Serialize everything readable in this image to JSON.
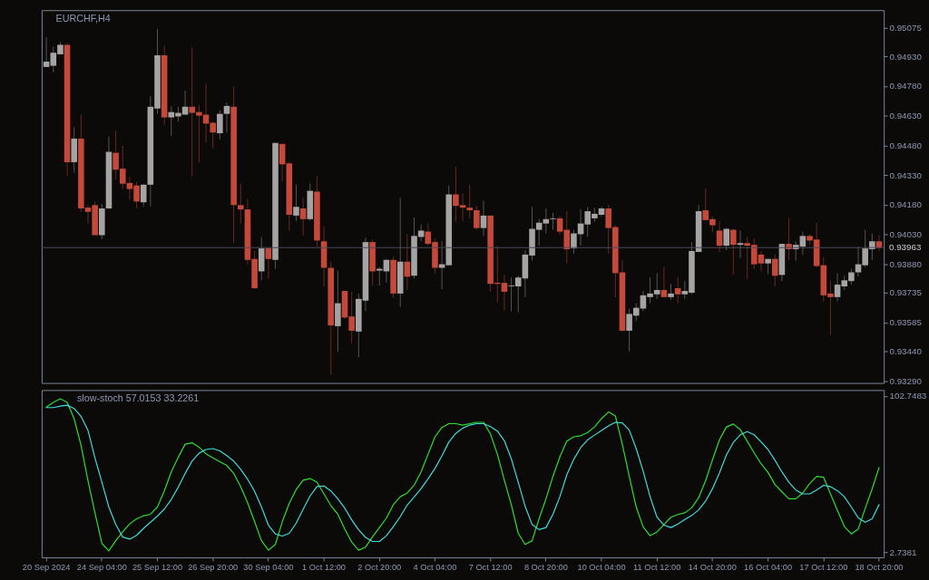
{
  "chart_data": [
    {
      "type": "candlestick",
      "title": "EURCHF,H4",
      "ohlc": [
        [
          0.94876,
          0.95027,
          0.94876,
          0.94903
        ],
        [
          0.94882,
          0.94979,
          0.94847,
          0.94948
        ],
        [
          0.9494,
          0.95002,
          0.9494,
          0.94988
        ],
        [
          0.94988,
          0.94997,
          0.94326,
          0.94395
        ],
        [
          0.94395,
          0.94572,
          0.94341,
          0.94514
        ],
        [
          0.94514,
          0.94635,
          0.94144,
          0.94161
        ],
        [
          0.94165,
          0.9418,
          0.94086,
          0.94144
        ],
        [
          0.94178,
          0.94196,
          0.94026,
          0.94026
        ],
        [
          0.94026,
          0.94184,
          0.94005,
          0.94161
        ],
        [
          0.94161,
          0.94524,
          0.94158,
          0.94447
        ],
        [
          0.94442,
          0.94554,
          0.94308,
          0.94357
        ],
        [
          0.94362,
          0.94478,
          0.94259,
          0.94286
        ],
        [
          0.9429,
          0.94319,
          0.94205,
          0.94259
        ],
        [
          0.94277,
          0.94296,
          0.94161,
          0.94196
        ],
        [
          0.94192,
          0.94286,
          0.94171,
          0.94281
        ],
        [
          0.94281,
          0.94729,
          0.94171,
          0.94675
        ],
        [
          0.94666,
          0.95069,
          0.94639,
          0.94935
        ],
        [
          0.94935,
          0.94985,
          0.94583,
          0.94621
        ],
        [
          0.94621,
          0.94677,
          0.94527,
          0.94648
        ],
        [
          0.94626,
          0.94675,
          0.94599,
          0.94644
        ],
        [
          0.94635,
          0.94756,
          0.94635,
          0.94675
        ],
        [
          0.94675,
          0.94975,
          0.94322,
          0.94644
        ],
        [
          0.94648,
          0.94684,
          0.94393,
          0.9463
        ],
        [
          0.94635,
          0.94791,
          0.94496,
          0.9459
        ],
        [
          0.94594,
          0.94599,
          0.94465,
          0.94545
        ],
        [
          0.94541,
          0.94657,
          0.94511,
          0.94639
        ],
        [
          0.94639,
          0.94697,
          0.94545,
          0.94679
        ],
        [
          0.94675,
          0.94778,
          0.93986,
          0.94178
        ],
        [
          0.94178,
          0.94286,
          0.94086,
          0.94156
        ],
        [
          0.94156,
          0.9421,
          0.93879,
          0.93901
        ],
        [
          0.93906,
          0.93946,
          0.93753,
          0.93758
        ],
        [
          0.93843,
          0.94017,
          0.93798,
          0.93959
        ],
        [
          0.93959,
          0.93959,
          0.93807,
          0.93906
        ],
        [
          0.93901,
          0.94492,
          0.93856,
          0.94492
        ],
        [
          0.94487,
          0.94487,
          0.94299,
          0.94384
        ],
        [
          0.94389,
          0.94398,
          0.94049,
          0.94129
        ],
        [
          0.94125,
          0.94281,
          0.94098,
          0.94169
        ],
        [
          0.94161,
          0.94214,
          0.94022,
          0.94107
        ],
        [
          0.94107,
          0.94286,
          0.94098,
          0.9425
        ],
        [
          0.94246,
          0.94326,
          0.93968,
          0.93999
        ],
        [
          0.93995,
          0.94071,
          0.93767,
          0.93861
        ],
        [
          0.93861,
          0.93892,
          0.93319,
          0.9357
        ],
        [
          0.93566,
          0.93847,
          0.93436,
          0.93682
        ],
        [
          0.93744,
          0.93744,
          0.93601,
          0.9361
        ],
        [
          0.93615,
          0.9374,
          0.9348,
          0.93543
        ],
        [
          0.93539,
          0.93731,
          0.93409,
          0.93704
        ],
        [
          0.93695,
          0.94013,
          0.93642,
          0.93991
        ],
        [
          0.93991,
          0.94004,
          0.93771,
          0.93843
        ],
        [
          0.93847,
          0.93865,
          0.93771,
          0.93856
        ],
        [
          0.93843,
          0.93906,
          0.93785,
          0.93901
        ],
        [
          0.93901,
          0.93919,
          0.93709,
          0.93731
        ],
        [
          0.93731,
          0.94214,
          0.93664,
          0.93892
        ],
        [
          0.93892,
          0.94031,
          0.93749,
          0.93816
        ],
        [
          0.93821,
          0.94116,
          0.93807,
          0.94022
        ],
        [
          0.94017,
          0.9408,
          0.93995,
          0.94049
        ],
        [
          0.94044,
          0.94084,
          0.93973,
          0.93982
        ],
        [
          0.93991,
          0.94008,
          0.93834,
          0.93861
        ],
        [
          0.93861,
          0.93995,
          0.93753,
          0.93879
        ],
        [
          0.93874,
          0.94277,
          0.93874,
          0.94232
        ],
        [
          0.94232,
          0.94371,
          0.94093,
          0.94174
        ],
        [
          0.94178,
          0.94237,
          0.94098,
          0.94165
        ],
        [
          0.94165,
          0.94281,
          0.94111,
          0.94152
        ],
        [
          0.94152,
          0.94174,
          0.94053,
          0.94062
        ],
        [
          0.94062,
          0.94201,
          0.94022,
          0.94125
        ],
        [
          0.94125,
          0.94125,
          0.9374,
          0.9378
        ],
        [
          0.93785,
          0.93973,
          0.93686,
          0.9378
        ],
        [
          0.93785,
          0.93825,
          0.93646,
          0.9374
        ],
        [
          0.93767,
          0.93812,
          0.93642,
          0.93771
        ],
        [
          0.93767,
          0.93821,
          0.93637,
          0.93812
        ],
        [
          0.93807,
          0.9395,
          0.93713,
          0.93928
        ],
        [
          0.93923,
          0.94169,
          0.93897,
          0.94058
        ],
        [
          0.94053,
          0.94107,
          0.93973,
          0.94089
        ],
        [
          0.94085,
          0.94161,
          0.94035,
          0.94107
        ],
        [
          0.94107,
          0.94138,
          0.94053,
          0.94111
        ],
        [
          0.94111,
          0.94125,
          0.94026,
          0.94044
        ],
        [
          0.94053,
          0.94147,
          0.93883,
          0.93955
        ],
        [
          0.93959,
          0.94053,
          0.93932,
          0.94035
        ],
        [
          0.94031,
          0.94156,
          0.93973,
          0.94085
        ],
        [
          0.9408,
          0.94169,
          0.94017,
          0.94147
        ],
        [
          0.94111,
          0.94165,
          0.94093,
          0.94134
        ],
        [
          0.94129,
          0.94169,
          0.9412,
          0.94161
        ],
        [
          0.94161,
          0.94178,
          0.93932,
          0.94062
        ],
        [
          0.94067,
          0.94076,
          0.93713,
          0.93834
        ],
        [
          0.93838,
          0.93901,
          0.93539,
          0.93543
        ],
        [
          0.93543,
          0.93655,
          0.93436,
          0.93628
        ],
        [
          0.93619,
          0.93682,
          0.93592,
          0.93659
        ],
        [
          0.93655,
          0.93744,
          0.93642,
          0.93722
        ],
        [
          0.93713,
          0.93812,
          0.93682,
          0.93731
        ],
        [
          0.93727,
          0.93834,
          0.93704,
          0.93749
        ],
        [
          0.93749,
          0.93865,
          0.93713,
          0.93713
        ],
        [
          0.93713,
          0.9378,
          0.937,
          0.93731
        ],
        [
          0.93758,
          0.93816,
          0.93682,
          0.93727
        ],
        [
          0.93727,
          0.93794,
          0.93704,
          0.93744
        ],
        [
          0.93735,
          0.93991,
          0.93727,
          0.93946
        ],
        [
          0.93941,
          0.94178,
          0.93941,
          0.94147
        ],
        [
          0.94152,
          0.94263,
          0.94102,
          0.94102
        ],
        [
          0.94107,
          0.9412,
          0.9404,
          0.94076
        ],
        [
          0.94049,
          0.94098,
          0.93941,
          0.93973
        ],
        [
          0.93973,
          0.94062,
          0.9395,
          0.94058
        ],
        [
          0.94053,
          0.94058,
          0.93829,
          0.93977
        ],
        [
          0.93977,
          0.94049,
          0.9391,
          0.93986
        ],
        [
          0.93986,
          0.94017,
          0.93803,
          0.93973
        ],
        [
          0.93977,
          0.94008,
          0.93856,
          0.93879
        ],
        [
          0.93928,
          0.93946,
          0.93843,
          0.93883
        ],
        [
          0.93883,
          0.93906,
          0.93829,
          0.93906
        ],
        [
          0.93906,
          0.93928,
          0.93767,
          0.93821
        ],
        [
          0.93825,
          0.93982,
          0.93794,
          0.93982
        ],
        [
          0.93982,
          0.94111,
          0.93901,
          0.93955
        ],
        [
          0.93955,
          0.93995,
          0.93897,
          0.93977
        ],
        [
          0.93968,
          0.94044,
          0.93928,
          0.94022
        ],
        [
          0.94022,
          0.94031,
          0.93977,
          0.93999
        ],
        [
          0.94004,
          0.94089,
          0.93865,
          0.9387
        ],
        [
          0.93874,
          0.93914,
          0.93691,
          0.93722
        ],
        [
          0.93731,
          0.93798,
          0.93521,
          0.93713
        ],
        [
          0.93713,
          0.93834,
          0.93691,
          0.93776
        ],
        [
          0.93767,
          0.93821,
          0.93749,
          0.93798
        ],
        [
          0.93794,
          0.93856,
          0.93776,
          0.93838
        ],
        [
          0.93838,
          0.93968,
          0.93816,
          0.93879
        ],
        [
          0.93874,
          0.94053,
          0.93865,
          0.93959
        ],
        [
          0.93955,
          0.94035,
          0.93901,
          0.93995
        ],
        [
          0.93995,
          0.94026,
          0.93946,
          0.93963
        ]
      ],
      "colors": [
        "#a4a4a4",
        "#a4a4a4",
        "#a4a4a4",
        "#c4493b",
        "#a4a4a4",
        "#c4493b",
        "#c4493b",
        "#c4493b",
        "#a4a4a4",
        "#a4a4a4",
        "#c4493b",
        "#c4493b",
        "#c4493b",
        "#c4493b",
        "#a4a4a4",
        "#a4a4a4",
        "#a4a4a4",
        "#c4493b",
        "#a4a4a4",
        "#a4a4a4",
        "#a4a4a4",
        "#c4493b",
        "#c4493b",
        "#c4493b",
        "#c4493b",
        "#a4a4a4",
        "#a4a4a4",
        "#c4493b",
        "#c4493b",
        "#c4493b",
        "#c4493b",
        "#a4a4a4",
        "#c4493b",
        "#a4a4a4",
        "#c4493b",
        "#c4493b",
        "#a4a4a4",
        "#c4493b",
        "#a4a4a4",
        "#c4493b",
        "#c4493b",
        "#c4493b",
        "#a4a4a4",
        "#c4493b",
        "#c4493b",
        "#a4a4a4",
        "#a4a4a4",
        "#c4493b",
        "#a4a4a4",
        "#a4a4a4",
        "#c4493b",
        "#a4a4a4",
        "#c4493b",
        "#a4a4a4",
        "#a4a4a4",
        "#c4493b",
        "#c4493b",
        "#a4a4a4",
        "#a4a4a4",
        "#c4493b",
        "#c4493b",
        "#c4493b",
        "#c4493b",
        "#a4a4a4",
        "#c4493b",
        "#c4493b",
        "#c4493b",
        "#a4a4a4",
        "#a4a4a4",
        "#a4a4a4",
        "#a4a4a4",
        "#a4a4a4",
        "#a4a4a4",
        "#a4a4a4",
        "#c4493b",
        "#c4493b",
        "#a4a4a4",
        "#a4a4a4",
        "#a4a4a4",
        "#a4a4a4",
        "#a4a4a4",
        "#c4493b",
        "#c4493b",
        "#c4493b",
        "#a4a4a4",
        "#a4a4a4",
        "#a4a4a4",
        "#a4a4a4",
        "#a4a4a4",
        "#c4493b",
        "#a4a4a4",
        "#c4493b",
        "#a4a4a4",
        "#a4a4a4",
        "#a4a4a4",
        "#c4493b",
        "#c4493b",
        "#c4493b",
        "#a4a4a4",
        "#c4493b",
        "#a4a4a4",
        "#c4493b",
        "#c4493b",
        "#c4493b",
        "#a4a4a4",
        "#c4493b",
        "#a4a4a4",
        "#c4493b",
        "#a4a4a4",
        "#a4a4a4",
        "#c4493b",
        "#c4493b",
        "#c4493b",
        "#c4493b",
        "#a4a4a4",
        "#a4a4a4",
        "#a4a4a4",
        "#a4a4a4",
        "#a4a4a4",
        "#a4a4a4",
        "#c4493b"
      ],
      "ylim": [
        0.93279,
        0.95163
      ],
      "yticks": [
        0.95075,
        {
          "value": 0.9493,
          "label": "0.94930"
        },
        {
          "value": 0.9478,
          "label": "0.94780"
        },
        {
          "value": 0.9463,
          "label": "0.94630"
        },
        {
          "value": 0.9448,
          "label": "0.94480"
        },
        {
          "value": 0.9433,
          "label": "0.94330"
        },
        {
          "value": 0.9418,
          "label": "0.94180"
        },
        {
          "value": 0.9403,
          "label": "0.94030"
        },
        {
          "value": 0.9388,
          "label": "0.93880"
        },
        0.93735,
        0.93585,
        {
          "value": 0.9344,
          "label": "0.93440"
        },
        {
          "value": 0.9329,
          "label": "0.93290"
        }
      ],
      "ref_lines": [
        {
          "axis": "y",
          "value": 0.93963,
          "label": "0.93963",
          "color": "#4a4a5c"
        }
      ]
    },
    {
      "type": "line",
      "title": "slow-stoch 57.0153 33.2261",
      "categories": [
        "20 Sep 2024",
        null,
        null,
        null,
        null,
        null,
        null,
        null,
        "24 Sep 04:00",
        null,
        null,
        null,
        null,
        null,
        null,
        null,
        "25 Sep 12:00",
        null,
        null,
        null,
        null,
        null,
        null,
        null,
        "26 Sep 20:00",
        null,
        null,
        null,
        null,
        null,
        null,
        null,
        "30 Sep 04:00",
        null,
        null,
        null,
        null,
        null,
        null,
        null,
        "1 Oct 12:00",
        null,
        null,
        null,
        null,
        null,
        null,
        null,
        "2 Oct 20:00",
        null,
        null,
        null,
        null,
        null,
        null,
        null,
        "4 Oct 04:00",
        null,
        null,
        null,
        null,
        null,
        null,
        null,
        "7 Oct 12:00",
        null,
        null,
        null,
        null,
        null,
        null,
        null,
        "8 Oct 20:00",
        null,
        null,
        null,
        null,
        null,
        null,
        null,
        "10 Oct 04:00",
        null,
        null,
        null,
        null,
        null,
        null,
        null,
        "11 Oct 12:00",
        null,
        null,
        null,
        null,
        null,
        null,
        null,
        "14 Oct 20:00",
        null,
        null,
        null,
        null,
        null,
        null,
        null,
        "16 Oct 04:00",
        null,
        null,
        null,
        null,
        null,
        null,
        null,
        "17 Oct 12:00",
        null,
        null,
        null,
        null,
        null,
        null,
        null,
        "18 Oct 20:00"
      ],
      "series": [
        {
          "color": "#2fe02f",
          "values": [
            95.6,
            98.6,
            100.9,
            98.6,
            88.2,
            71.0,
            48.5,
            28.0,
            8.4,
            3.7,
            10.2,
            15.8,
            20.9,
            24.2,
            26.1,
            27.1,
            31.7,
            42.0,
            54.2,
            63.5,
            71.9,
            72.8,
            70.0,
            65.7,
            63.1,
            60.7,
            58.3,
            53.2,
            44.8,
            34.5,
            22.4,
            10.2,
            4.1,
            7.8,
            22.4,
            34.0,
            42.9,
            48.9,
            49.9,
            47.6,
            40.1,
            32.7,
            27.1,
            17.7,
            9.3,
            4.1,
            6.1,
            12.7,
            18.6,
            24.6,
            33.2,
            38.3,
            40.7,
            45.7,
            54.2,
            65.4,
            76.6,
            82.6,
            85.0,
            85.0,
            84.1,
            85.0,
            85.9,
            85.9,
            78.4,
            65.4,
            48.9,
            33.2,
            14.9,
            7.8,
            10.2,
            24.2,
            37.0,
            51.3,
            63.9,
            73.8,
            76.6,
            77.3,
            79.4,
            82.9,
            88.2,
            92.5,
            90.0,
            71.9,
            51.3,
            31.7,
            19.0,
            13.4,
            15.8,
            20.5,
            25.2,
            26.9,
            28.0,
            31.2,
            37.7,
            48.5,
            62.0,
            74.7,
            82.9,
            84.8,
            81.2,
            73.8,
            66.3,
            59.4,
            53.8,
            46.1,
            41.4,
            37.0,
            37.0,
            40.7,
            46.7,
            51.3,
            50.8,
            40.1,
            29.5,
            19.2,
            14.5,
            17.7,
            30.8,
            43.3,
            57.0153
          ]
        },
        {
          "color": "#3fdede",
          "values": [
            95.3,
            95.3,
            96.2,
            96.8,
            94.7,
            89.7,
            80.7,
            63.1,
            47.6,
            31.7,
            20.5,
            12.5,
            11.2,
            13.6,
            18.1,
            22.0,
            25.9,
            30.4,
            36.6,
            44.4,
            53.2,
            61.2,
            66.1,
            68.5,
            69.1,
            67.6,
            64.6,
            61.1,
            55.8,
            49.5,
            41.8,
            31.7,
            20.1,
            14.5,
            13.2,
            14.9,
            21.4,
            30.2,
            38.8,
            44.8,
            45.2,
            42.0,
            37.0,
            31.0,
            23.5,
            17.1,
            12.3,
            9.7,
            9.7,
            13.4,
            19.2,
            25.6,
            33.0,
            38.1,
            43.5,
            49.7,
            56.4,
            64.4,
            73.2,
            78.8,
            82.2,
            84.1,
            85.0,
            85.0,
            83.1,
            80.3,
            74.1,
            62.6,
            47.6,
            32.1,
            20.5,
            17.3,
            18.6,
            27.1,
            38.3,
            52.3,
            62.2,
            69.7,
            74.7,
            77.7,
            80.7,
            83.5,
            85.9,
            85.5,
            80.9,
            69.1,
            54.7,
            38.3,
            25.2,
            20.1,
            18.6,
            20.9,
            23.7,
            26.3,
            29.9,
            35.5,
            43.5,
            53.6,
            65.0,
            73.0,
            77.9,
            79.9,
            77.9,
            73.4,
            68.5,
            61.6,
            54.2,
            47.6,
            42.6,
            40.1,
            40.1,
            42.6,
            45.6,
            44.8,
            42.2,
            38.3,
            31.7,
            24.8,
            22.0,
            24.2,
            33.2261
          ]
        }
      ],
      "ylim": [
        -0.5,
        106.5
      ],
      "yticks": [
        102.7483,
        2.7381
      ]
    }
  ]
}
